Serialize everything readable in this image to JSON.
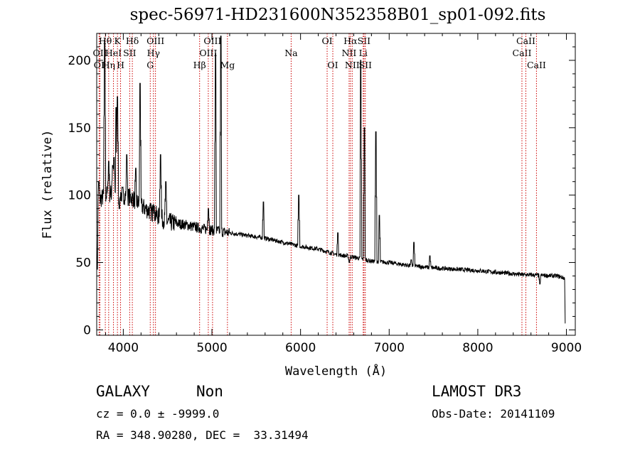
{
  "title": "spec-56971-HD231600N352358B01_sp01-092.fits",
  "footer": {
    "class_label": "GALAXY",
    "subclass_label": "Non",
    "cz_text": "cz = 0.0 ± -9999.0",
    "coords_text": "RA = 348.90280, DEC =  33.31494",
    "survey_label": "LAMOST DR3",
    "obs_date_text": "Obs-Date: 20141109"
  },
  "chart_data": {
    "type": "line",
    "xlabel": "Wavelength (Å)",
    "ylabel": "Flux (relative)",
    "xlim": [
      3700,
      9100
    ],
    "ylim": [
      -4,
      220
    ],
    "xticks": [
      4000,
      5000,
      6000,
      7000,
      8000,
      9000
    ],
    "yticks": [
      0,
      50,
      100,
      150,
      200
    ],
    "line_color": "#000000",
    "marker_color": "#cc0000",
    "series": [
      {
        "continuum": [
          [
            3700,
            95
          ],
          [
            3800,
            100
          ],
          [
            3900,
            102
          ],
          [
            4000,
            100
          ],
          [
            4100,
            98
          ],
          [
            4200,
            92
          ],
          [
            4300,
            88
          ],
          [
            4400,
            84
          ],
          [
            4500,
            80
          ],
          [
            4700,
            78
          ],
          [
            4900,
            75
          ],
          [
            5000,
            74
          ],
          [
            5200,
            72
          ],
          [
            5400,
            70
          ],
          [
            5600,
            68
          ],
          [
            5800,
            65
          ],
          [
            6000,
            62
          ],
          [
            6200,
            60
          ],
          [
            6400,
            56
          ],
          [
            6600,
            54
          ],
          [
            6800,
            51
          ],
          [
            7000,
            50
          ],
          [
            7200,
            48
          ],
          [
            7500,
            46
          ],
          [
            8000,
            44
          ],
          [
            8500,
            41
          ],
          [
            8900,
            40
          ],
          [
            8990,
            38
          ]
        ],
        "features": [
          {
            "x": 3705,
            "y": 45
          },
          {
            "x": 3725,
            "y": 110
          },
          {
            "x": 3790,
            "y": 215
          },
          {
            "x": 3835,
            "y": 125
          },
          {
            "x": 3880,
            "y": 122
          },
          {
            "x": 3895,
            "y": 128
          },
          {
            "x": 3920,
            "y": 165
          },
          {
            "x": 3935,
            "y": 173
          },
          {
            "x": 3955,
            "y": 90
          },
          {
            "x": 4040,
            "y": 130
          },
          {
            "x": 4140,
            "y": 120
          },
          {
            "x": 4190,
            "y": 183
          },
          {
            "x": 4340,
            "y": 93
          },
          {
            "x": 4420,
            "y": 130
          },
          {
            "x": 4480,
            "y": 110
          },
          {
            "x": 4960,
            "y": 90
          },
          {
            "x": 5040,
            "y": 205
          },
          {
            "x": 5100,
            "y": 218
          },
          {
            "x": 5580,
            "y": 95
          },
          {
            "x": 5980,
            "y": 100
          },
          {
            "x": 6420,
            "y": 72
          },
          {
            "x": 6550,
            "y": 50
          },
          {
            "x": 6680,
            "y": 200
          },
          {
            "x": 6720,
            "y": 150
          },
          {
            "x": 6850,
            "y": 147
          },
          {
            "x": 6890,
            "y": 85
          },
          {
            "x": 7250,
            "y": 52
          },
          {
            "x": 7280,
            "y": 65
          },
          {
            "x": 7460,
            "y": 55
          },
          {
            "x": 8700,
            "y": 34
          },
          {
            "x": 8990,
            "y": 5
          }
        ]
      }
    ],
    "lines": [
      {
        "label": "OI",
        "x": 3727,
        "row": 2
      },
      {
        "label": "OII",
        "x": 3737,
        "row": 1
      },
      {
        "label": "Hθ",
        "x": 3797,
        "row": 0
      },
      {
        "label": "Hη",
        "x": 3835,
        "row": 2
      },
      {
        "label": "HeI",
        "x": 3889,
        "row": 1
      },
      {
        "label": "K",
        "x": 3934,
        "row": 0
      },
      {
        "label": "H",
        "x": 3969,
        "row": 2
      },
      {
        "label": "SII",
        "x": 4072,
        "row": 1
      },
      {
        "label": "Hδ",
        "x": 4102,
        "row": 0
      },
      {
        "label": "G",
        "x": 4304,
        "row": 2
      },
      {
        "label": "Hγ",
        "x": 4340,
        "row": 1
      },
      {
        "label": "OIII",
        "x": 4363,
        "row": 0
      },
      {
        "label": "Hβ",
        "x": 4861,
        "row": 2
      },
      {
        "label": "OIII",
        "x": 4959,
        "row": 1
      },
      {
        "label": "OIII",
        "x": 5007,
        "row": 0
      },
      {
        "label": "Mg",
        "x": 5175,
        "row": 2
      },
      {
        "label": "Na",
        "x": 5894,
        "row": 1
      },
      {
        "label": "OI",
        "x": 6300,
        "row": 0
      },
      {
        "label": "OI",
        "x": 6364,
        "row": 2
      },
      {
        "label": "NII",
        "x": 6548,
        "row": 1
      },
      {
        "label": "Hα",
        "x": 6563,
        "row": 0
      },
      {
        "label": "NII",
        "x": 6583,
        "row": 2
      },
      {
        "label": "Li",
        "x": 6707,
        "row": 1
      },
      {
        "label": "SII",
        "x": 6716,
        "row": 0
      },
      {
        "label": "SII",
        "x": 6731,
        "row": 2
      },
      {
        "label": "CaII",
        "x": 8498,
        "row": 1
      },
      {
        "label": "CaII",
        "x": 8542,
        "row": 0
      },
      {
        "label": "CaII",
        "x": 8662,
        "row": 2
      }
    ]
  }
}
